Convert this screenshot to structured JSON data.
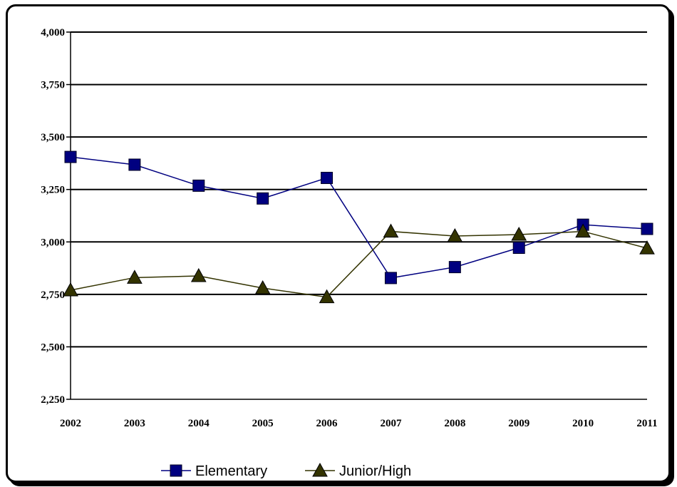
{
  "chart_data": {
    "type": "line",
    "title": "",
    "xlabel": "",
    "ylabel": "",
    "categories": [
      "2002",
      "2003",
      "2004",
      "2005",
      "2006",
      "2007",
      "2008",
      "2009",
      "2010",
      "2011"
    ],
    "ylim": [
      2250,
      4000
    ],
    "yticks": [
      2250,
      2500,
      2750,
      3000,
      3250,
      3500,
      3750,
      4000
    ],
    "ytick_labels": [
      "2,250",
      "2,500",
      "2,750",
      "3,000",
      "3,250",
      "3,500",
      "3,750",
      "4,000"
    ],
    "grid": true,
    "legend_position": "bottom",
    "series": [
      {
        "name": "Elementary",
        "marker": "square",
        "color": "#000080",
        "values": [
          3405,
          3368,
          3268,
          3207,
          3305,
          2828,
          2880,
          2972,
          3082,
          3062
        ]
      },
      {
        "name": "Junior/High",
        "marker": "triangle",
        "color": "#333300",
        "values": [
          2770,
          2830,
          2838,
          2780,
          2737,
          3050,
          3028,
          3035,
          3050,
          2970
        ]
      }
    ]
  }
}
